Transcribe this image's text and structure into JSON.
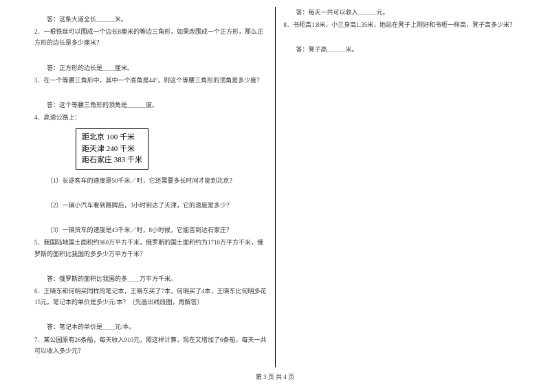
{
  "left": {
    "ans1": "答：这条大道全长＿＿＿米。",
    "q2": "2．一根铁丝可以围成一个边长8厘米的等边三角形，如果改围成一个正方形，那么正方形的边长是多少厘米？",
    "ans2": "答：正方形的边长是＿＿厘米。",
    "q3": "3．在一个等腰三角形中，其中一个底角是44°，则这个等腰三角形的顶角是多少度？",
    "ans3": "答：这个等腰三角形的顶角是＿＿＿度。",
    "q4": "4．高速公路上：",
    "road1": "距北京 100 千米",
    "road2": "距天津 240 千米",
    "road3": "距石家庄 383 千米",
    "q4_1": "（1）长途客车的速度是50千米／时，它还需要多长时间才能到北京？",
    "q4_2": "（2）一辆小汽车看到路牌后，3小时到达了天津，它的速度是多少？",
    "q4_3": "（3）一辆货车的速度是43千米／时，8小时候，它能否到达石家庄？",
    "q5": "5．我国陆地国土面积约960万平方千米，俄罗斯的国土面积约为1710万平方千米，俄罗斯的面积比我国的多多少万平方千米？",
    "ans5": "答：俄罗斯的面积比我国的多＿＿万平方千米。",
    "q6": "6．王晓东和何明买同样的笔记本，王晓东买了7本，何明买了4本，王晓东比何明多花15元。笔记本的单价是多少元/本？（先画出线段图，再解答）",
    "ans6": "答：笔记本的单价是＿＿元/本。",
    "q7": "7．某公园原有26条船，每天收入910元，照这样计算，现在又增加了6条船，每天一共可以收入多少元？"
  },
  "right": {
    "ans7": "答：每天一共可以收入＿＿＿元。",
    "q8": "8．书柜高1.8米，小兰身高1.35米，她站在凳子上刚好和书柜一样高，凳子高多少米？",
    "ans8": "答：凳子高＿＿＿米。"
  },
  "footer": "第 3 页 共 4 页"
}
